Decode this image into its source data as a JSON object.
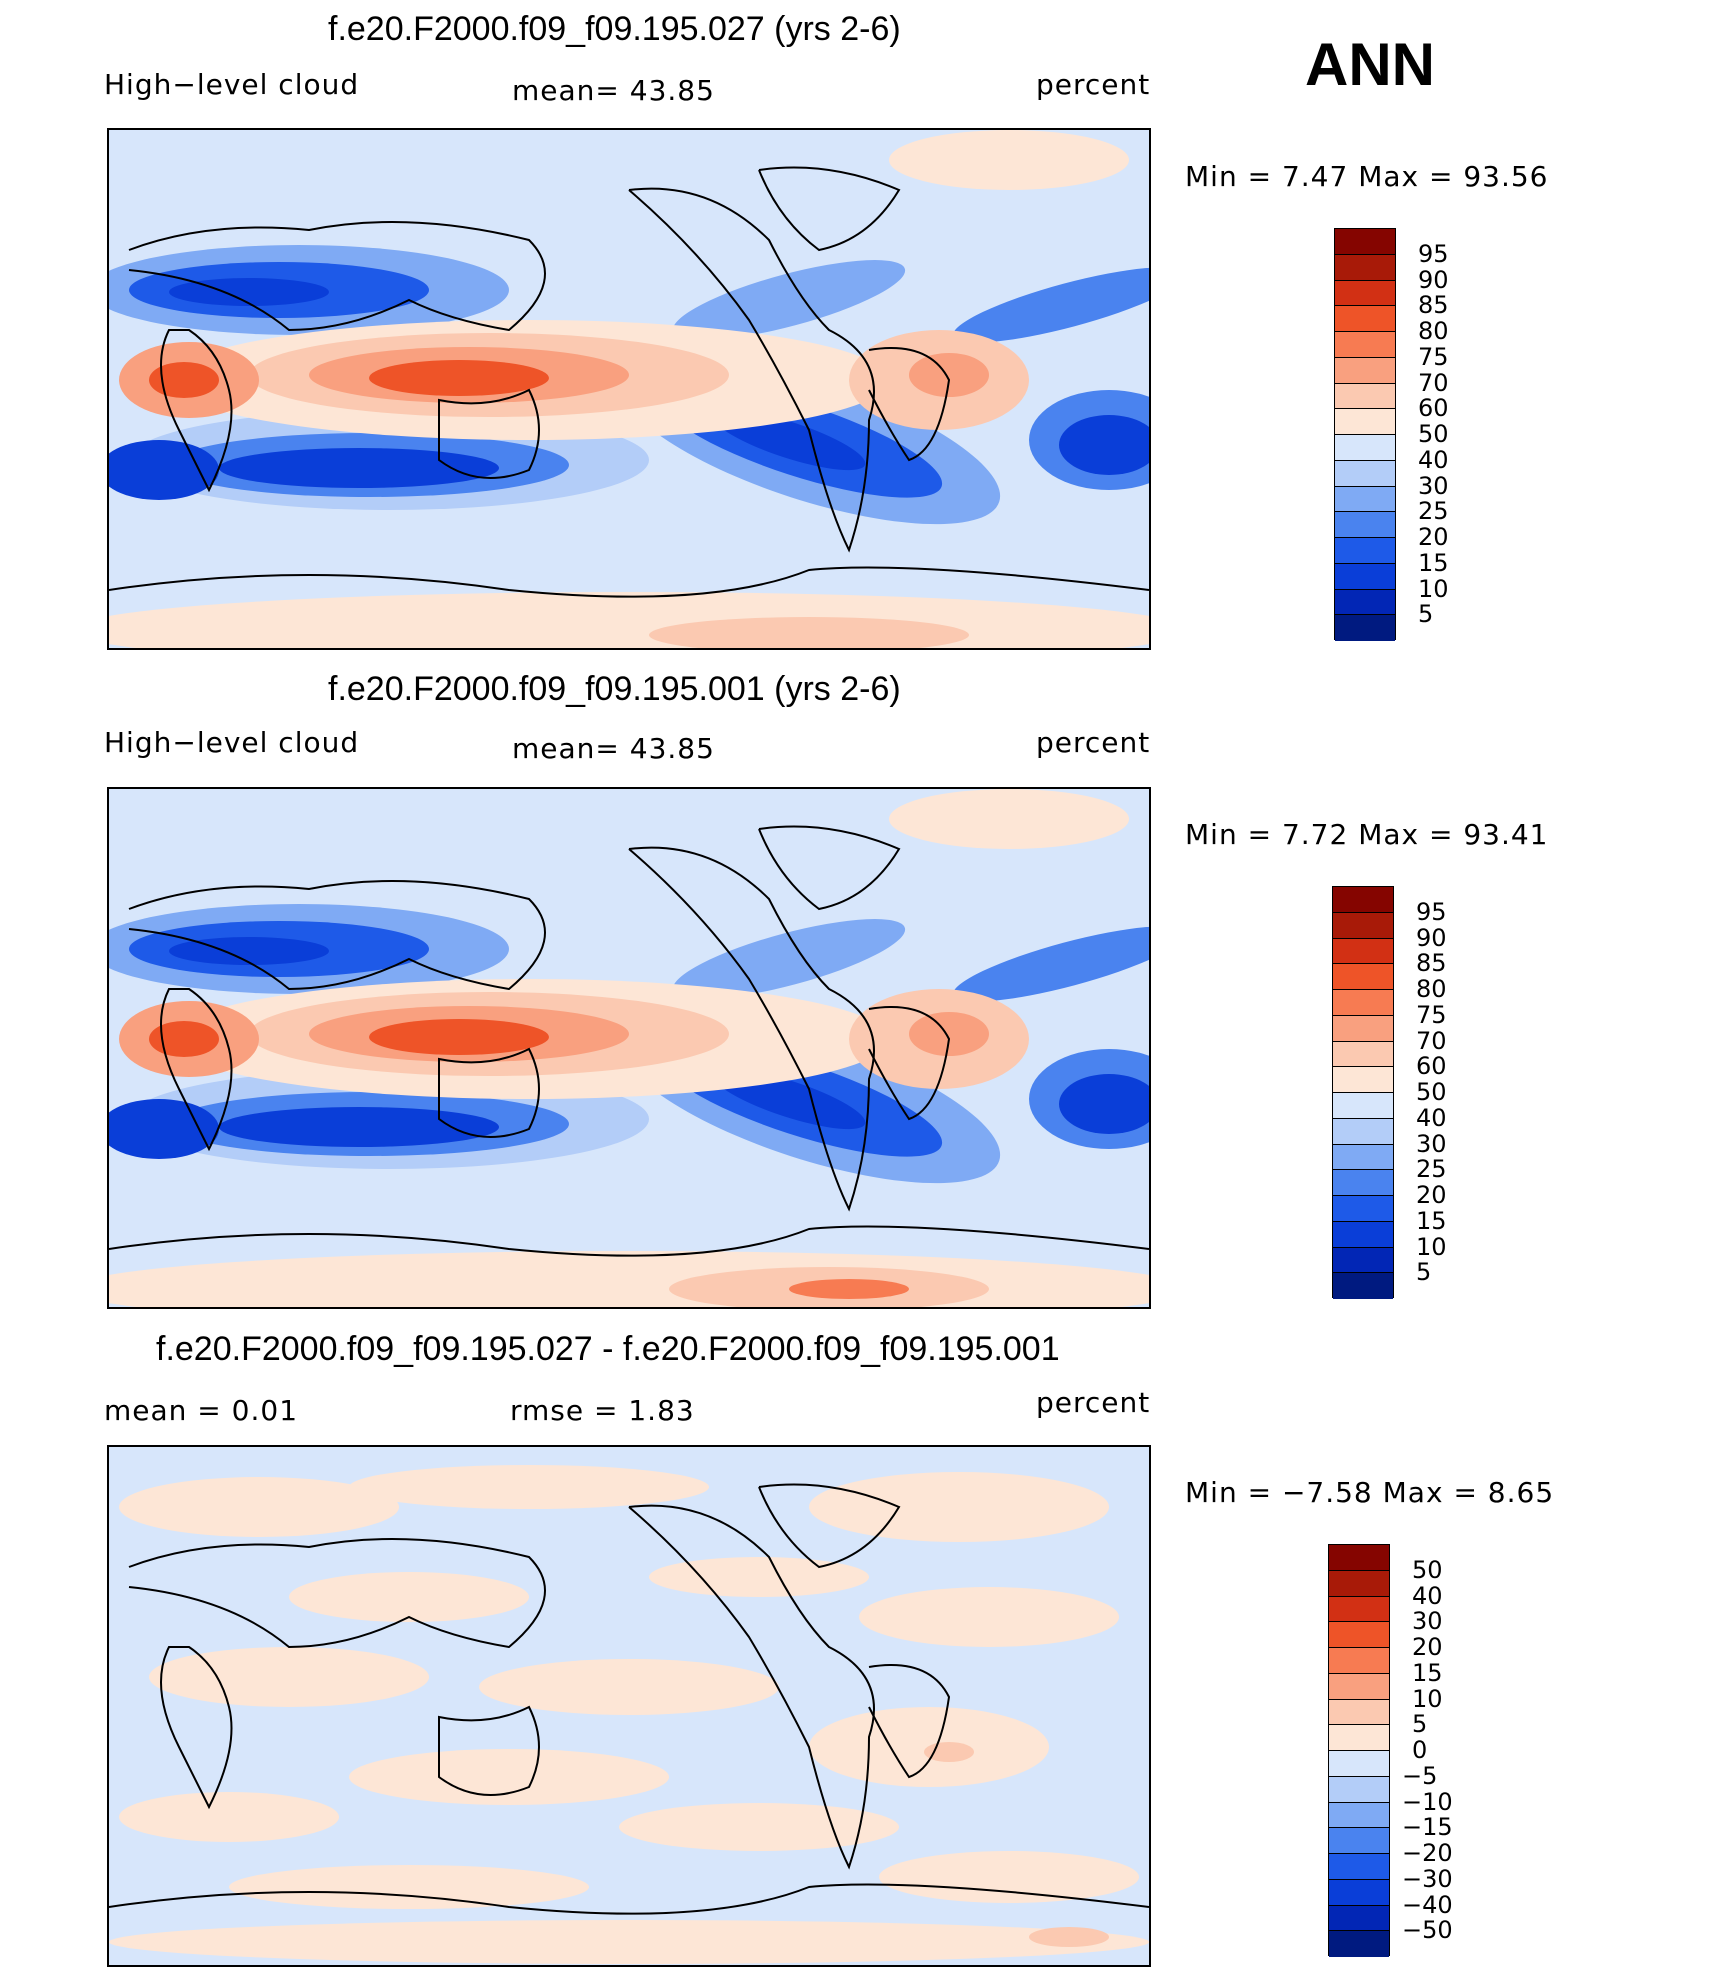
{
  "season": "ANN",
  "palette_full": [
    "#f6b7b1",
    "#88d27f",
    "#9b1206"
  ],
  "full_colors": [
    "#001a80",
    "#0226b5",
    "#0a3ed8",
    "#1e5ae8",
    "#4a83ef",
    "#7faaf4",
    "#b3cdf8",
    "#d7e6fb",
    "#fde6d6",
    "#fbc9b1",
    "#f9a07f",
    "#f77b52",
    "#ee5428",
    "#d23014",
    "#a81a08",
    "#850500"
  ],
  "panels": [
    {
      "title": "f.e20.F2000.f09_f09.195.027 (yrs 2-6)",
      "left_label": "High−level cloud",
      "mid_label": "mean=   43.85",
      "right_label": "percent",
      "min_max": "Min  =     7.47  Max  =    93.56",
      "colorbar_labels": [
        "95",
        "90",
        "85",
        "80",
        "75",
        "70",
        "60",
        "50",
        "40",
        "30",
        "25",
        "20",
        "15",
        "10",
        "5"
      ]
    },
    {
      "title": "f.e20.F2000.f09_f09.195.001 (yrs 2-6)",
      "left_label": "High−level cloud",
      "mid_label": "mean=   43.85",
      "right_label": "percent",
      "min_max": "Min  =     7.72  Max  =    93.41",
      "colorbar_labels": [
        "95",
        "90",
        "85",
        "80",
        "75",
        "70",
        "60",
        "50",
        "40",
        "30",
        "25",
        "20",
        "15",
        "10",
        "5"
      ]
    },
    {
      "title": "f.e20.F2000.f09_f09.195.027 - f.e20.F2000.f09_f09.195.001",
      "left_label": "mean  =     0.01",
      "mid_label": "rmse  =     1.83",
      "right_label": "percent",
      "min_max": "Min  =   −7.58  Max  =     8.65",
      "colorbar_labels": [
        "50",
        "40",
        "30",
        "20",
        "15",
        "10",
        "5",
        "0",
        "−5",
        "−10",
        "−15",
        "−20",
        "−30",
        "−40",
        "−50"
      ]
    }
  ]
}
